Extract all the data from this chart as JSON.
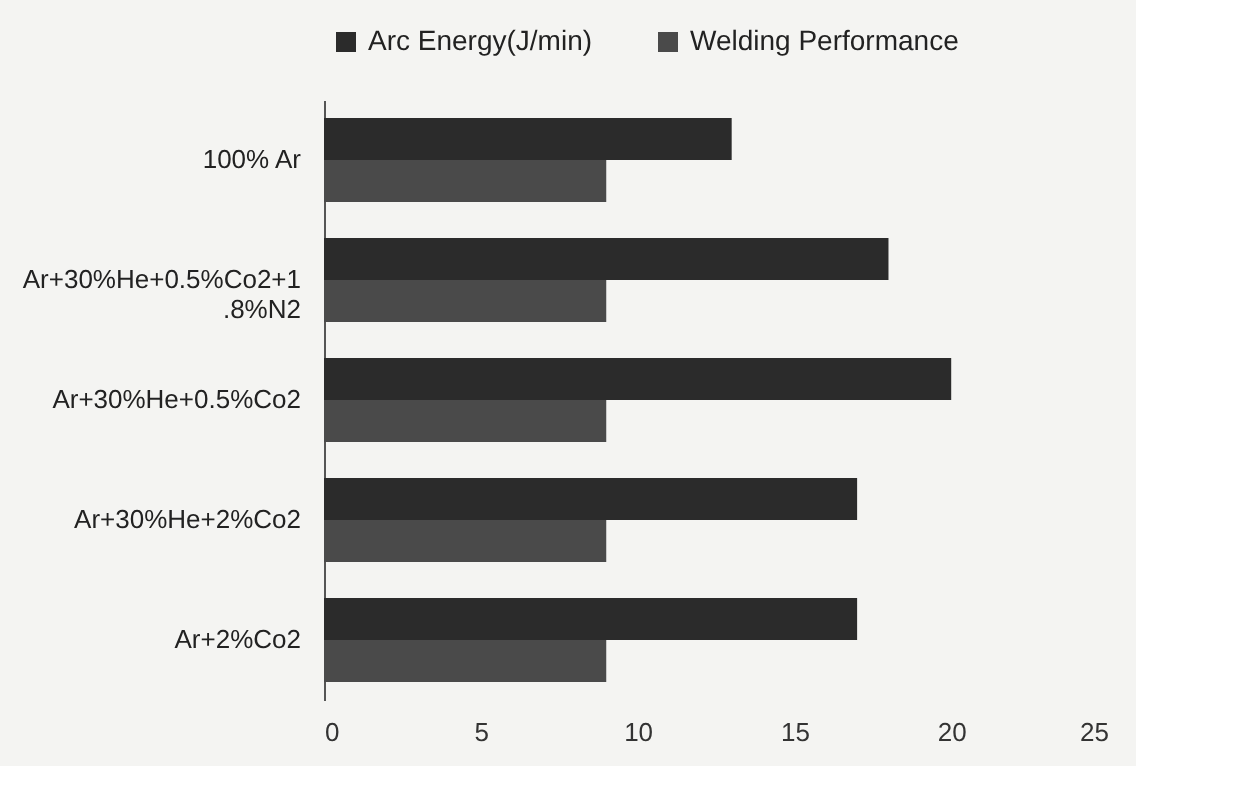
{
  "chart_data": {
    "type": "bar",
    "orientation": "horizontal",
    "categories": [
      "100% Ar",
      "Ar+30%He+0.5%Co2+1.8%N2",
      "Ar+30%He+0.5%Co2",
      "Ar+30%He+2%Co2",
      "Ar+2%Co2"
    ],
    "series": [
      {
        "name": "Arc Energy(J/min)",
        "color": "#2b2b2b",
        "values": [
          13,
          18,
          20,
          17,
          17
        ]
      },
      {
        "name": "Welding Performance",
        "color": "#4a4a4a",
        "values": [
          9,
          9,
          9,
          9,
          9
        ]
      }
    ],
    "xlim": [
      0,
      25
    ],
    "xticks": [
      0,
      5,
      10,
      15,
      20,
      25
    ],
    "grid": false,
    "legend": "top"
  }
}
